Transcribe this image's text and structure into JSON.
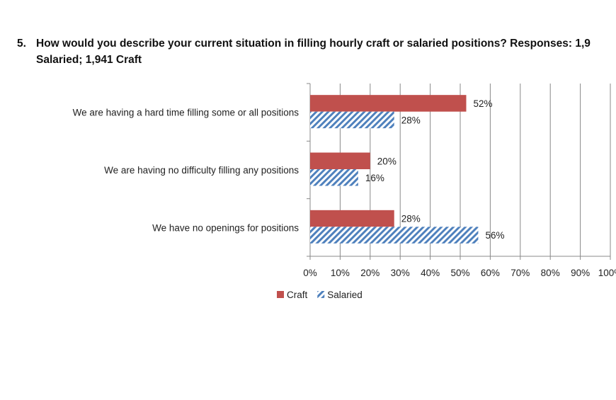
{
  "question": {
    "number": "5.",
    "line1": "How would you describe your current situation in filling hourly craft or salaried positions?  Responses: 1,9",
    "line2": "Salaried; 1,941 Craft"
  },
  "chart_data": {
    "type": "bar",
    "orientation": "horizontal",
    "categories": [
      "We are having a hard time filling some or all positions",
      "We are having no difficulty filling any positions",
      "We have no openings for positions"
    ],
    "series": [
      {
        "name": "Craft",
        "values": [
          52,
          20,
          28
        ],
        "labels": [
          "52%",
          "20%",
          "28%"
        ],
        "color": "#c0504d",
        "pattern": "solid"
      },
      {
        "name": "Salaried",
        "values": [
          28,
          16,
          56
        ],
        "labels": [
          "28%",
          "16%",
          "56%"
        ],
        "color": "#4f81bd",
        "pattern": "diagonal-hatch"
      }
    ],
    "xlim": [
      0,
      100
    ],
    "xticks": [
      "0%",
      "10%",
      "20%",
      "30%",
      "40%",
      "50%",
      "60%",
      "70%",
      "80%",
      "90%",
      "100%"
    ],
    "grid": true,
    "legend": "bottom"
  }
}
